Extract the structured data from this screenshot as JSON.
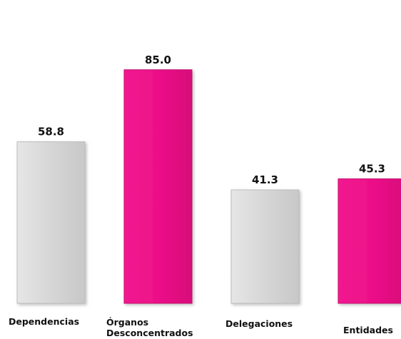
{
  "chart_data": {
    "type": "bar",
    "title": "",
    "xlabel": "",
    "ylabel": "",
    "categories": [
      "Dependencias",
      "Órganos Desconcentrados",
      "Delegaciones",
      "Entidades"
    ],
    "values": [
      58.8,
      85.0,
      41.3,
      45.3
    ],
    "value_labels": [
      "58.8",
      "85.0",
      "41.3",
      "45.3"
    ],
    "colors": [
      "#d9d9d9",
      "#ef1188",
      "#d9d9d9",
      "#ef1188"
    ],
    "ylim": [
      0,
      100
    ],
    "grid": false,
    "legend": "none"
  }
}
